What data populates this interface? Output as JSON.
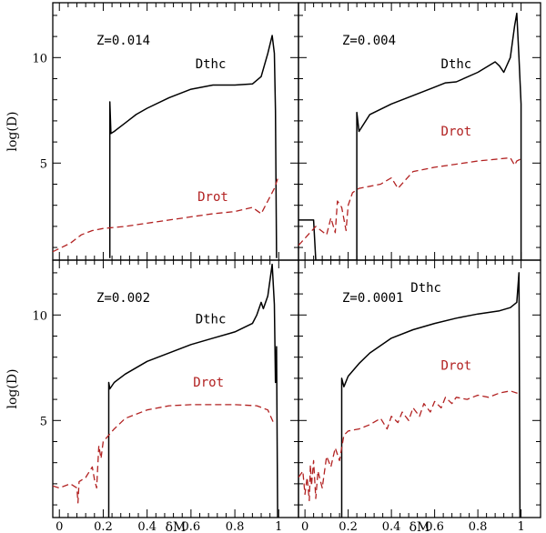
{
  "chart_data": {
    "type": "line",
    "xlabel": "δM",
    "ylabel": "log(D)",
    "xlim": [
      -0.03,
      1.09
    ],
    "ylim": [
      0.4,
      12.6
    ],
    "x_ticks": [
      0,
      0.2,
      0.4,
      0.6,
      0.8,
      1
    ],
    "x_tick_labels": [
      "0",
      "0.2",
      "0.4",
      "0.6",
      "0.8",
      "1"
    ],
    "y_ticks": [
      5,
      10
    ],
    "y_tick_labels": [
      "5",
      "10"
    ],
    "colors": {
      "dthc": "#000000",
      "drot": "#b22222"
    },
    "panels": [
      {
        "label": "Z=0.014",
        "series": [
          {
            "name": "Dthc",
            "style": "solid",
            "points": [
              [
                0.23,
                0.5
              ],
              [
                0.23,
                7.9
              ],
              [
                0.235,
                6.4
              ],
              [
                0.25,
                6.5
              ],
              [
                0.3,
                6.9
              ],
              [
                0.35,
                7.3
              ],
              [
                0.4,
                7.6
              ],
              [
                0.5,
                8.1
              ],
              [
                0.6,
                8.5
              ],
              [
                0.7,
                8.7
              ],
              [
                0.8,
                8.7
              ],
              [
                0.88,
                8.75
              ],
              [
                0.92,
                9.1
              ],
              [
                0.95,
                10.2
              ],
              [
                0.97,
                11.05
              ],
              [
                0.98,
                10.2
              ],
              [
                0.985,
                7.5
              ],
              [
                0.99,
                0.5
              ]
            ]
          },
          {
            "name": "Drot",
            "style": "dashed",
            "points": [
              [
                -0.03,
                0.8
              ],
              [
                0.05,
                1.2
              ],
              [
                0.1,
                1.6
              ],
              [
                0.15,
                1.8
              ],
              [
                0.2,
                1.9
              ],
              [
                0.3,
                2.0
              ],
              [
                0.4,
                2.15
              ],
              [
                0.5,
                2.3
              ],
              [
                0.6,
                2.45
              ],
              [
                0.7,
                2.6
              ],
              [
                0.8,
                2.7
              ],
              [
                0.88,
                2.9
              ],
              [
                0.92,
                2.6
              ],
              [
                0.95,
                3.2
              ],
              [
                0.98,
                3.8
              ],
              [
                1.0,
                4.4
              ]
            ]
          }
        ],
        "annotations": [
          {
            "text": "Dthc",
            "x": 0.69,
            "y": 9.5,
            "series": "dthc"
          },
          {
            "text": "Drot",
            "x": 0.7,
            "y": 3.2,
            "series": "drot"
          }
        ]
      },
      {
        "label": "Z=0.004",
        "series": [
          {
            "name": "Dthc",
            "style": "solid",
            "points": [
              [
                -0.03,
                2.3
              ],
              [
                0.04,
                2.3
              ],
              [
                0.05,
                0.4
              ],
              [
                0.055,
                0.4
              ],
              [
                0.24,
                0.4
              ],
              [
                0.24,
                7.4
              ],
              [
                0.25,
                6.5
              ],
              [
                0.3,
                7.3
              ],
              [
                0.4,
                7.8
              ],
              [
                0.5,
                8.2
              ],
              [
                0.6,
                8.6
              ],
              [
                0.65,
                8.8
              ],
              [
                0.7,
                8.85
              ],
              [
                0.8,
                9.3
              ],
              [
                0.88,
                9.8
              ],
              [
                0.9,
                9.6
              ],
              [
                0.92,
                9.3
              ],
              [
                0.95,
                10.0
              ],
              [
                0.97,
                11.5
              ],
              [
                0.98,
                12.1
              ],
              [
                0.99,
                10.0
              ],
              [
                1.0,
                7.8
              ],
              [
                1.0,
                0.4
              ]
            ]
          },
          {
            "name": "Drot",
            "style": "dashed",
            "points": [
              [
                -0.03,
                1.1
              ],
              [
                0.05,
                2.0
              ],
              [
                0.1,
                1.6
              ],
              [
                0.12,
                2.4
              ],
              [
                0.14,
                1.7
              ],
              [
                0.15,
                3.2
              ],
              [
                0.17,
                2.9
              ],
              [
                0.19,
                1.8
              ],
              [
                0.2,
                3.0
              ],
              [
                0.22,
                3.6
              ],
              [
                0.25,
                3.8
              ],
              [
                0.3,
                3.9
              ],
              [
                0.35,
                4.0
              ],
              [
                0.4,
                4.3
              ],
              [
                0.43,
                3.8
              ],
              [
                0.5,
                4.6
              ],
              [
                0.6,
                4.8
              ],
              [
                0.7,
                4.95
              ],
              [
                0.8,
                5.1
              ],
              [
                0.9,
                5.2
              ],
              [
                0.95,
                5.25
              ],
              [
                0.97,
                4.9
              ],
              [
                0.98,
                5.1
              ],
              [
                1.0,
                5.2
              ]
            ]
          }
        ],
        "annotations": [
          {
            "text": "Dthc",
            "x": 0.7,
            "y": 9.5,
            "series": "dthc"
          },
          {
            "text": "Drot",
            "x": 0.7,
            "y": 6.3,
            "series": "drot"
          }
        ]
      },
      {
        "label": "Z=0.002",
        "series": [
          {
            "name": "Dthc",
            "style": "solid",
            "points": [
              [
                0.225,
                0.4
              ],
              [
                0.225,
                6.8
              ],
              [
                0.23,
                6.5
              ],
              [
                0.25,
                6.8
              ],
              [
                0.3,
                7.2
              ],
              [
                0.4,
                7.8
              ],
              [
                0.5,
                8.2
              ],
              [
                0.6,
                8.6
              ],
              [
                0.7,
                8.9
              ],
              [
                0.8,
                9.2
              ],
              [
                0.88,
                9.6
              ],
              [
                0.9,
                10.0
              ],
              [
                0.92,
                10.6
              ],
              [
                0.93,
                10.3
              ],
              [
                0.95,
                10.9
              ],
              [
                0.97,
                12.4
              ],
              [
                0.98,
                10.5
              ],
              [
                0.985,
                6.8
              ],
              [
                0.99,
                8.5
              ],
              [
                0.995,
                0.4
              ]
            ]
          },
          {
            "name": "Drot",
            "style": "dashed",
            "points": [
              [
                -0.03,
                1.9
              ],
              [
                0.0,
                1.8
              ],
              [
                0.05,
                2.0
              ],
              [
                0.08,
                1.8
              ],
              [
                0.085,
                1.1
              ],
              [
                0.09,
                2.1
              ],
              [
                0.12,
                2.3
              ],
              [
                0.15,
                2.8
              ],
              [
                0.16,
                2.2
              ],
              [
                0.17,
                1.8
              ],
              [
                0.18,
                3.8
              ],
              [
                0.19,
                3.2
              ],
              [
                0.2,
                4.0
              ],
              [
                0.25,
                4.6
              ],
              [
                0.3,
                5.1
              ],
              [
                0.4,
                5.5
              ],
              [
                0.5,
                5.7
              ],
              [
                0.6,
                5.75
              ],
              [
                0.7,
                5.75
              ],
              [
                0.8,
                5.75
              ],
              [
                0.9,
                5.7
              ],
              [
                0.95,
                5.5
              ],
              [
                0.98,
                4.8
              ]
            ]
          }
        ],
        "annotations": [
          {
            "text": "Dthc",
            "x": 0.69,
            "y": 9.6,
            "series": "dthc"
          },
          {
            "text": "Drot",
            "x": 0.68,
            "y": 6.6,
            "series": "drot"
          }
        ]
      },
      {
        "label": "Z=0.0001",
        "series": [
          {
            "name": "Dthc",
            "style": "solid",
            "points": [
              [
                0.17,
                0.4
              ],
              [
                0.17,
                7.0
              ],
              [
                0.18,
                6.6
              ],
              [
                0.2,
                7.1
              ],
              [
                0.25,
                7.7
              ],
              [
                0.3,
                8.2
              ],
              [
                0.4,
                8.9
              ],
              [
                0.5,
                9.3
              ],
              [
                0.6,
                9.6
              ],
              [
                0.7,
                9.85
              ],
              [
                0.8,
                10.05
              ],
              [
                0.9,
                10.2
              ],
              [
                0.95,
                10.35
              ],
              [
                0.98,
                10.6
              ],
              [
                0.99,
                12.0
              ],
              [
                0.995,
                0.4
              ]
            ]
          },
          {
            "name": "Drot",
            "style": "dashed",
            "points": [
              [
                -0.03,
                2.3
              ],
              [
                -0.01,
                2.6
              ],
              [
                0.0,
                1.5
              ],
              [
                0.01,
                2.3
              ],
              [
                0.02,
                1.2
              ],
              [
                0.025,
                2.9
              ],
              [
                0.03,
                1.9
              ],
              [
                0.04,
                3.1
              ],
              [
                0.05,
                1.3
              ],
              [
                0.06,
                2.6
              ],
              [
                0.08,
                1.8
              ],
              [
                0.1,
                3.3
              ],
              [
                0.12,
                2.8
              ],
              [
                0.14,
                3.7
              ],
              [
                0.16,
                3.1
              ],
              [
                0.18,
                4.3
              ],
              [
                0.2,
                4.5
              ],
              [
                0.25,
                4.6
              ],
              [
                0.3,
                4.8
              ],
              [
                0.35,
                5.1
              ],
              [
                0.38,
                4.6
              ],
              [
                0.4,
                5.2
              ],
              [
                0.43,
                4.9
              ],
              [
                0.45,
                5.4
              ],
              [
                0.48,
                5.0
              ],
              [
                0.5,
                5.6
              ],
              [
                0.53,
                5.2
              ],
              [
                0.55,
                5.8
              ],
              [
                0.58,
                5.4
              ],
              [
                0.6,
                5.9
              ],
              [
                0.63,
                5.6
              ],
              [
                0.65,
                6.1
              ],
              [
                0.68,
                5.8
              ],
              [
                0.7,
                6.1
              ],
              [
                0.75,
                6.0
              ],
              [
                0.8,
                6.2
              ],
              [
                0.85,
                6.1
              ],
              [
                0.9,
                6.3
              ],
              [
                0.95,
                6.4
              ],
              [
                0.98,
                6.3
              ],
              [
                1.0,
                6.3
              ]
            ]
          }
        ],
        "annotations": [
          {
            "text": "Dthc",
            "x": 0.56,
            "y": 11.1,
            "series": "dthc"
          },
          {
            "text": "Drot",
            "x": 0.7,
            "y": 7.4,
            "series": "drot"
          }
        ]
      }
    ]
  }
}
